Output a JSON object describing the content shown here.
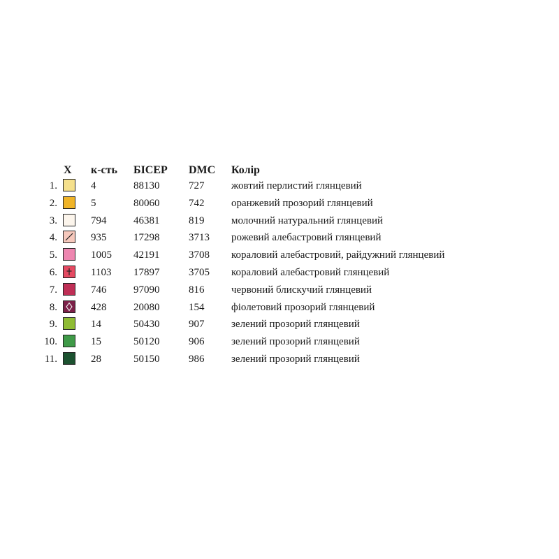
{
  "headers": {
    "symbol": "X",
    "quantity": "к-сть",
    "bead": "БІСЕР",
    "dmc": "DMC",
    "color": "Колір"
  },
  "rows": [
    {
      "num": "1.",
      "swatch": "#f5e08c",
      "symbol": "none",
      "qty": "4",
      "bead": "88130",
      "dmc": "727",
      "color": "жовтий перлистий глянцевий"
    },
    {
      "num": "2.",
      "swatch": "#f0b428",
      "symbol": "none",
      "qty": "5",
      "bead": "80060",
      "dmc": "742",
      "color": "оранжевий прозорий глянцевий"
    },
    {
      "num": "3.",
      "swatch": "#fcf5ec",
      "symbol": "none",
      "qty": "794",
      "bead": "46381",
      "dmc": "819",
      "color": "молочний натуральний глянцевий"
    },
    {
      "num": "4.",
      "swatch": "#f6c8bc",
      "symbol": "slash",
      "qty": "935",
      "bead": "17298",
      "dmc": "3713",
      "color": "рожевий алебастровий глянцевий"
    },
    {
      "num": "5.",
      "swatch": "#ee86b0",
      "symbol": "none",
      "qty": "1005",
      "bead": "42191",
      "dmc": "3708",
      "color": "кораловий алебастровий, райдужний глянцевий"
    },
    {
      "num": "6.",
      "swatch": "#e54a62",
      "symbol": "plus",
      "qty": "1103",
      "bead": "17897",
      "dmc": "3705",
      "color": "кораловий алебастровий глянцевий"
    },
    {
      "num": "7.",
      "swatch": "#bf2f56",
      "symbol": "none",
      "qty": "746",
      "bead": "97090",
      "dmc": "816",
      "color": "червоний блискучий глянцевий"
    },
    {
      "num": "8.",
      "swatch": "#7c2048",
      "symbol": "diamond",
      "qty": "428",
      "bead": "20080",
      "dmc": "154",
      "color": "фіолетовий прозорий глянцевий"
    },
    {
      "num": "9.",
      "swatch": "#8fbc34",
      "symbol": "none",
      "qty": "14",
      "bead": "50430",
      "dmc": "907",
      "color": "зелений прозорий глянцевий"
    },
    {
      "num": "10.",
      "swatch": "#3f9a48",
      "symbol": "none",
      "qty": "15",
      "bead": "50120",
      "dmc": "906",
      "color": "зелений прозорий глянцевий"
    },
    {
      "num": "11.",
      "swatch": "#1c5230",
      "symbol": "none",
      "qty": "28",
      "bead": "50150",
      "dmc": "986",
      "color": "зелений прозорий глянцевий"
    }
  ]
}
